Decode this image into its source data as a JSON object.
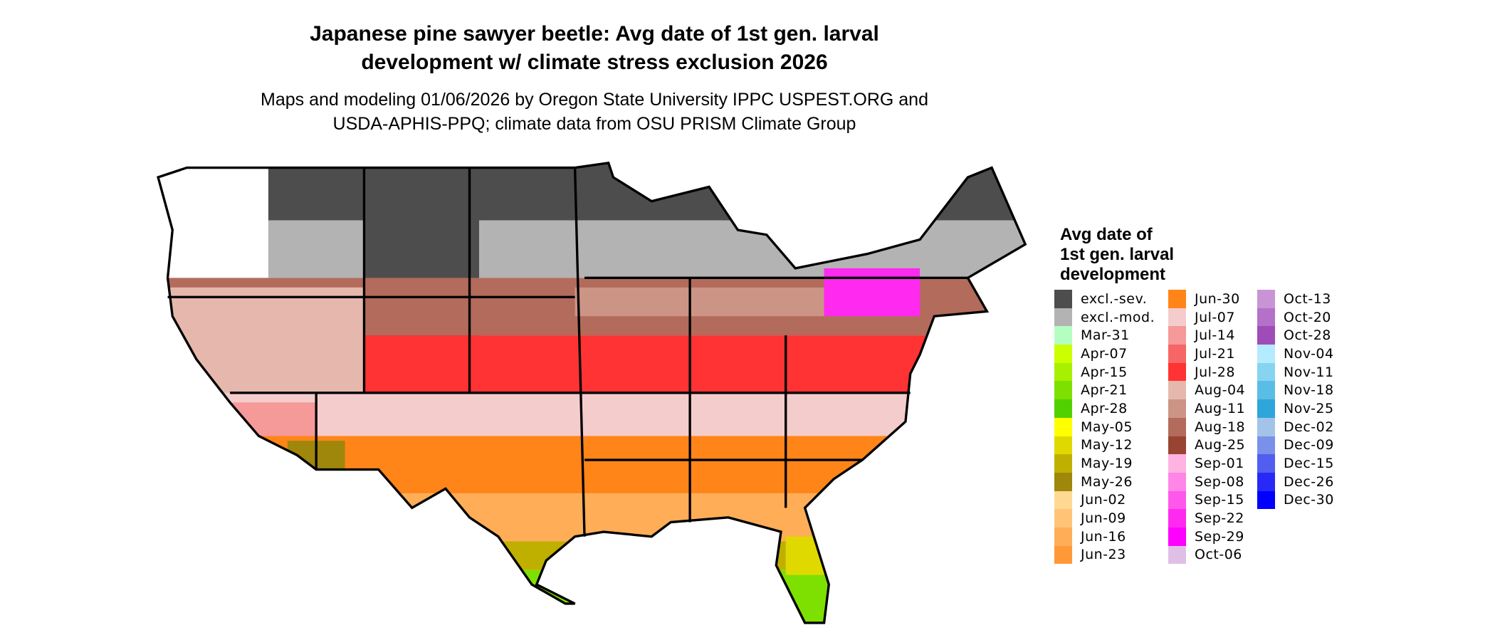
{
  "title_line1": "Japanese pine sawyer beetle: Avg date of 1st gen. larval",
  "title_line2": "development w/ climate stress exclusion 2026",
  "subtitle_line1": "Maps and modeling 01/06/2026 by Oregon State University IPPC USPEST.ORG and",
  "subtitle_line2": "USDA-APHIS-PPQ; climate data from OSU PRISM Climate Group",
  "legend": {
    "title_line1": "Avg date of",
    "title_line2": "1st gen. larval",
    "title_line3": "development",
    "columns": [
      [
        {
          "label": "excl.-sev.",
          "color": "#4d4d4d"
        },
        {
          "label": "excl.-mod.",
          "color": "#b3b3b3"
        },
        {
          "label": "Mar-31",
          "color": "#b3ffc2"
        },
        {
          "label": "Apr-07",
          "color": "#ccff00"
        },
        {
          "label": "Apr-15",
          "color": "#a6f000"
        },
        {
          "label": "Apr-21",
          "color": "#7de000"
        },
        {
          "label": "Apr-28",
          "color": "#52d100"
        },
        {
          "label": "May-05",
          "color": "#ffff00"
        },
        {
          "label": "May-12",
          "color": "#e0d900"
        },
        {
          "label": "May-19",
          "color": "#bfb000"
        },
        {
          "label": "May-26",
          "color": "#9e870a"
        },
        {
          "label": "Jun-02",
          "color": "#ffd994"
        },
        {
          "label": "Jun-09",
          "color": "#ffc475"
        },
        {
          "label": "Jun-16",
          "color": "#ffad57"
        },
        {
          "label": "Jun-23",
          "color": "#ff9938"
        }
      ],
      [
        {
          "label": "Jun-30",
          "color": "#ff8519"
        },
        {
          "label": "Jul-07",
          "color": "#f5cccc"
        },
        {
          "label": "Jul-14",
          "color": "#f59999"
        },
        {
          "label": "Jul-21",
          "color": "#f76666"
        },
        {
          "label": "Jul-28",
          "color": "#ff3333"
        },
        {
          "label": "Aug-04",
          "color": "#e6b8ad"
        },
        {
          "label": "Aug-11",
          "color": "#cc9485"
        },
        {
          "label": "Aug-18",
          "color": "#b36b5c"
        },
        {
          "label": "Aug-25",
          "color": "#994433"
        },
        {
          "label": "Sep-01",
          "color": "#ffb3e0"
        },
        {
          "label": "Sep-08",
          "color": "#ff85e6"
        },
        {
          "label": "Sep-15",
          "color": "#ff57eb"
        },
        {
          "label": "Sep-22",
          "color": "#ff29f0"
        },
        {
          "label": "Sep-29",
          "color": "#ff00ff"
        },
        {
          "label": "Oct-06",
          "color": "#e0bfe6"
        }
      ],
      [
        {
          "label": "Oct-13",
          "color": "#c994d6"
        },
        {
          "label": "Oct-20",
          "color": "#b570c7"
        },
        {
          "label": "Oct-28",
          "color": "#a04cb8"
        },
        {
          "label": "Nov-04",
          "color": "#b3ebff"
        },
        {
          "label": "Nov-11",
          "color": "#87d4f0"
        },
        {
          "label": "Nov-18",
          "color": "#5abde6"
        },
        {
          "label": "Nov-25",
          "color": "#2ea6db"
        },
        {
          "label": "Dec-02",
          "color": "#a3c4e8"
        },
        {
          "label": "Dec-09",
          "color": "#7a91eb"
        },
        {
          "label": "Dec-15",
          "color": "#525ef0"
        },
        {
          "label": "Dec-26",
          "color": "#2929f7"
        },
        {
          "label": "Dec-30",
          "color": "#0000ff"
        }
      ]
    ]
  }
}
